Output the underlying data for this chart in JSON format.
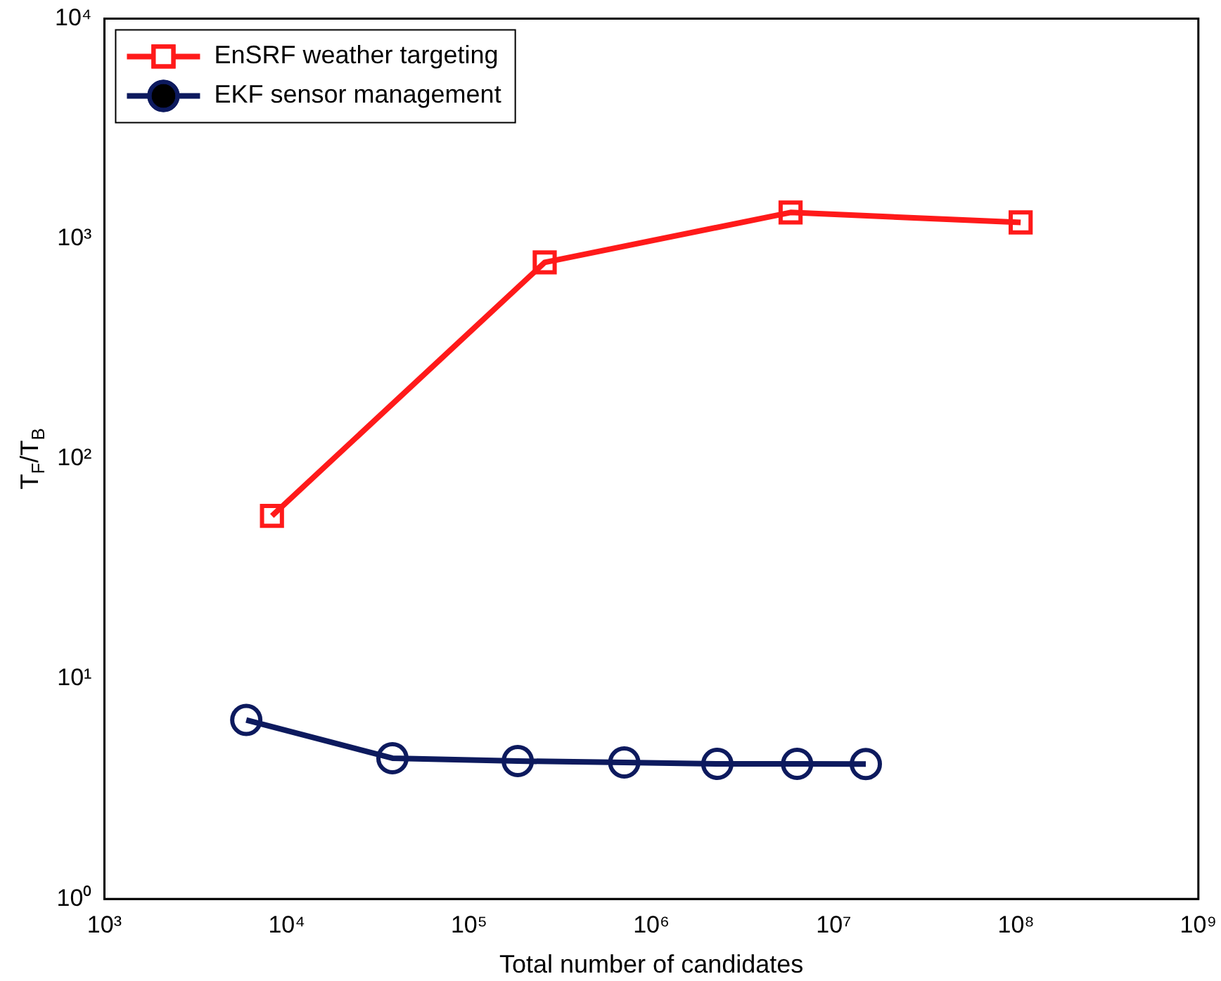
{
  "chart_data": {
    "type": "line",
    "xlabel": "Total number of candidates",
    "ylabel": "T$_{F}$/T$_{B}$",
    "log": "xy",
    "grid": false,
    "legend": "top left",
    "line_style": "solid",
    "xlim": [
      1000,
      1000000000
    ],
    "xticks": [
      {
        "value": 1000,
        "label": "10³"
      },
      {
        "value": 10000,
        "label": "10⁴"
      },
      {
        "value": 100000,
        "label": "10⁵"
      },
      {
        "value": 1000000,
        "label": "10⁶"
      },
      {
        "value": 10000000,
        "label": "10⁷"
      },
      {
        "value": 100000000,
        "label": "10⁸"
      },
      {
        "value": 1000000000,
        "label": "10⁹"
      }
    ],
    "ylim": [
      1,
      10000
    ],
    "yticks": [
      {
        "value": 1,
        "label": "10⁰"
      },
      {
        "value": 10,
        "label": "10¹"
      },
      {
        "value": 100,
        "label": "10²"
      },
      {
        "value": 1000,
        "label": "10³"
      },
      {
        "value": 10000,
        "label": "10⁴"
      }
    ],
    "series": [
      {
        "name": "EnSRF weather targeting",
        "color": "#ff1a1a",
        "marker": "square",
        "x": [
          8300,
          260000,
          5800000,
          106000000
        ],
        "values": [
          55,
          780,
          1315,
          1185
        ]
      },
      {
        "name": "EKF sensor management",
        "color": "#0d1a5e",
        "marker": "circle",
        "x": [
          6000,
          38000,
          185000,
          710000,
          2300000,
          6300000,
          15000000
        ],
        "values": [
          6.5,
          4.36,
          4.23,
          4.17,
          4.11,
          4.11,
          4.1
        ]
      }
    ]
  }
}
